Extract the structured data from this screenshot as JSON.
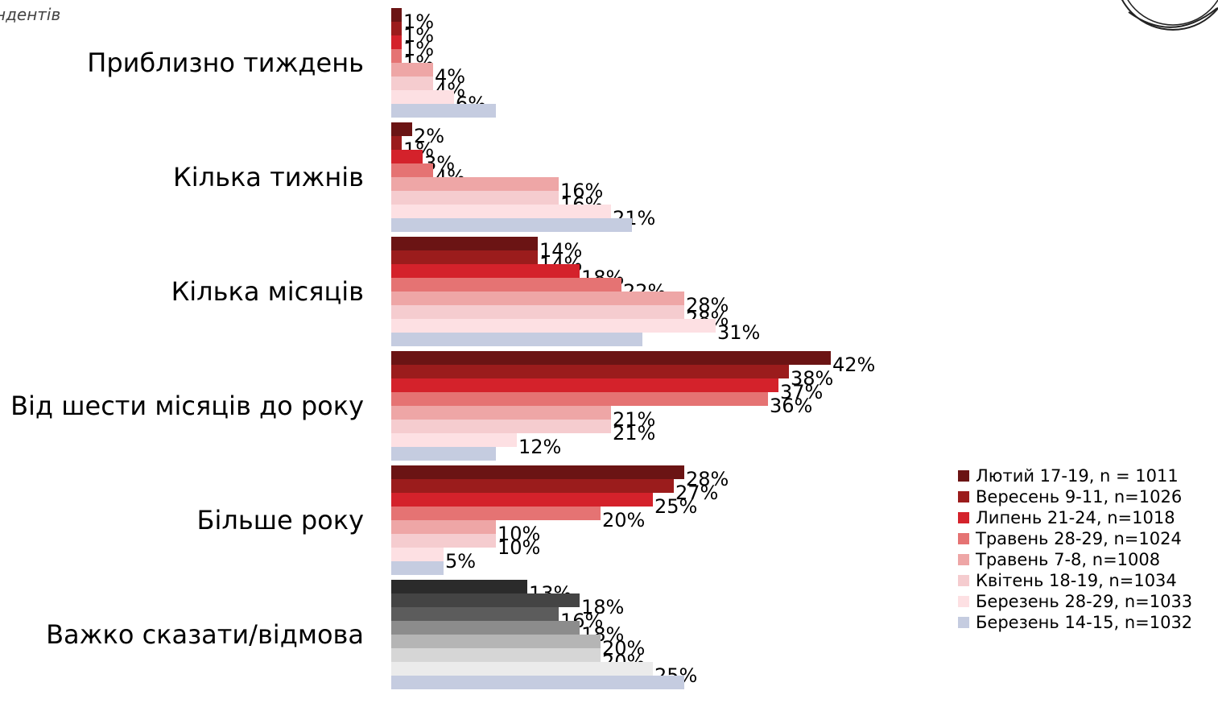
{
  "subtitle": "ндентів",
  "chart_data": {
    "type": "bar",
    "orientation": "horizontal",
    "categories": [
      "Приблизно тиждень",
      "Кілька тижнів",
      "Кілька місяців",
      "Від шести місяців до року",
      "Більше року",
      "Важко сказати/відмова"
    ],
    "series": [
      {
        "name": "Лютий 17-19, n = 1011",
        "color": "#6b1414",
        "values": [
          1,
          2,
          14,
          42,
          28,
          13
        ],
        "value_labels": [
          "1%",
          "2%",
          "14%",
          "42%",
          "28%",
          "13%"
        ]
      },
      {
        "name": "Вересень 9-11, n=1026",
        "color": "#9b1c1c",
        "values": [
          1,
          1,
          14,
          38,
          27,
          18
        ],
        "value_labels": [
          "1%",
          "1%",
          "14%",
          "38%",
          "27%",
          "18%"
        ]
      },
      {
        "name": "Липень 21-24, n=1018",
        "color": "#d4222b",
        "values": [
          1,
          3,
          18,
          37,
          25,
          16
        ],
        "value_labels": [
          "1%",
          "3%",
          "18%",
          "37%",
          "25%",
          "16%"
        ]
      },
      {
        "name": "Травень 28-29, n=1024",
        "color": "#e57373",
        "values": [
          1,
          4,
          22,
          36,
          20,
          18
        ],
        "value_labels": [
          "1%",
          "4%",
          "22%",
          "36%",
          "20%",
          "18%"
        ]
      },
      {
        "name": "Травень 7-8, n=1008",
        "color": "#eea6a6",
        "values": [
          4,
          16,
          28,
          21,
          10,
          20
        ],
        "value_labels": [
          "4%",
          "16%",
          "28%",
          "21%",
          "10%",
          "20%"
        ]
      },
      {
        "name": "Квітень 18-19, n=1034",
        "color": "#f5cccf",
        "values": [
          4,
          16,
          28,
          21,
          10,
          20
        ],
        "value_labels": [
          "4%",
          "16%",
          "28%",
          "21%",
          "10%",
          "20%"
        ]
      },
      {
        "name": "Березень 28-29, n=1033",
        "color": "#fde0e3",
        "values": [
          6,
          21,
          31,
          12,
          5,
          25
        ],
        "value_labels": [
          "6%",
          "21%",
          "31%",
          "12%",
          "5%",
          "25%"
        ]
      },
      {
        "name": "Березень 14-15, n=1032",
        "color": "#c5cce0",
        "values": [
          10,
          23,
          24,
          10,
          5,
          28
        ],
        "value_labels": [
          "",
          "",
          "",
          "",
          "",
          ""
        ]
      }
    ],
    "last_category_colors": [
      "#2b2b2b",
      "#444444",
      "#5c5c5c",
      "#8c8c8c",
      "#b5b5b5",
      "#d6d6d6",
      "#ebebeb",
      "#c5cce0"
    ],
    "xlim": [
      0,
      42
    ],
    "legend_position": "right-bottom"
  }
}
